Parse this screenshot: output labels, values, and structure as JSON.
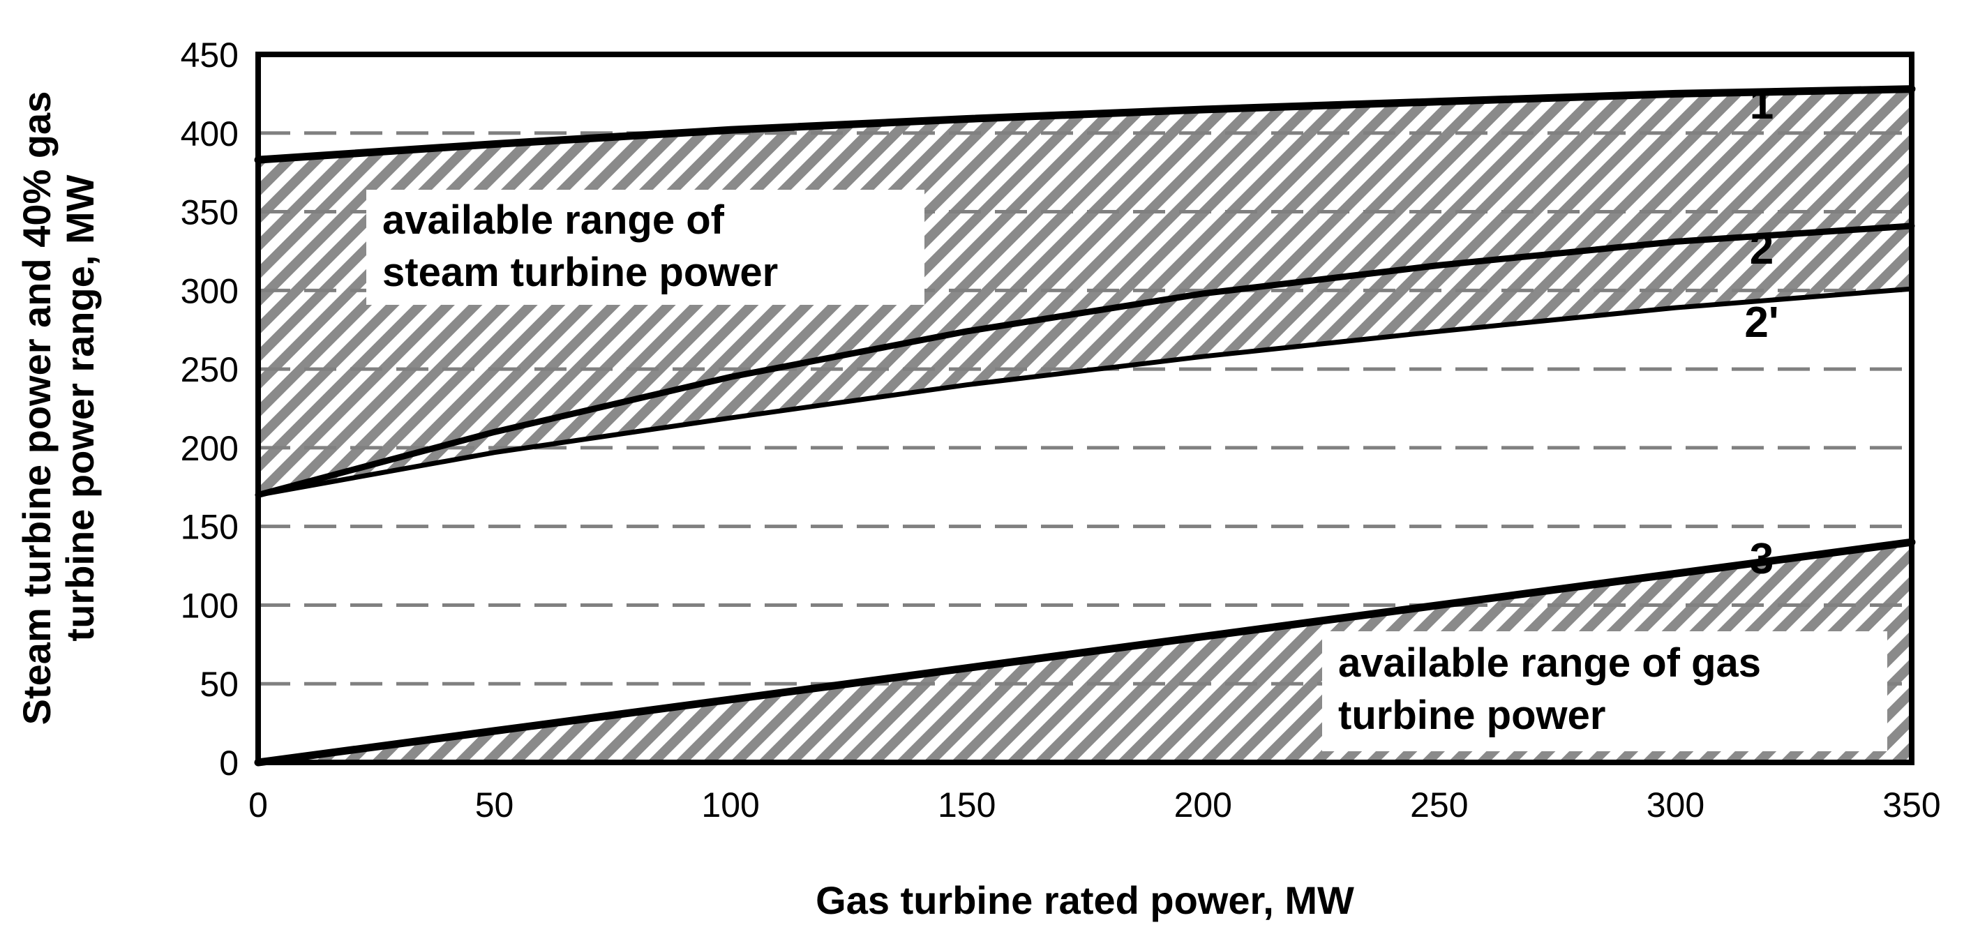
{
  "chart_data": {
    "type": "line",
    "title": "",
    "xlabel": "Gas turbine rated power, MW",
    "ylabel_lines": [
      "Steam turbine power and 40% gas",
      "turbine power range, MW"
    ],
    "xlim": [
      0,
      350
    ],
    "ylim": [
      0,
      450
    ],
    "xticks": [
      "0",
      "50",
      "100",
      "150",
      "200",
      "250",
      "300",
      "350"
    ],
    "yticks": [
      "0",
      "50",
      "100",
      "150",
      "200",
      "250",
      "300",
      "350",
      "400",
      "450"
    ],
    "grid": "horizontal dashed",
    "series": [
      {
        "name": "1",
        "x": [
          0,
          50,
          100,
          150,
          200,
          250,
          300,
          350
        ],
        "values": [
          383,
          393,
          402,
          409,
          415,
          420,
          425,
          428
        ]
      },
      {
        "name": "2",
        "x": [
          0,
          50,
          100,
          150,
          200,
          250,
          300,
          350
        ],
        "values": [
          170,
          210,
          245,
          274,
          298,
          316,
          331,
          341
        ]
      },
      {
        "name": "2'",
        "x": [
          0,
          50,
          100,
          150,
          200,
          250,
          300,
          350
        ],
        "values": [
          170,
          197,
          219,
          240,
          258,
          274,
          289,
          301
        ]
      },
      {
        "name": "3",
        "x": [
          0,
          50,
          100,
          150,
          200,
          250,
          300,
          350
        ],
        "values": [
          0,
          20,
          40,
          60,
          80,
          100,
          120,
          140
        ]
      }
    ],
    "shaded_regions": [
      {
        "label": "available range of steam turbine power",
        "between": [
          "2'",
          "1"
        ],
        "hatch": "diagonal"
      },
      {
        "label": "available range of gas turbine power",
        "between": [
          "axis",
          "3"
        ],
        "hatch": "diagonal"
      }
    ],
    "annotations": [
      {
        "lines": [
          "available range of",
          "steam turbine power"
        ]
      },
      {
        "lines": [
          "available range of gas",
          "turbine power"
        ]
      }
    ]
  },
  "colors": {
    "line": "#000000",
    "grid": "#808080",
    "hatch": "#8a8a8a",
    "background": "#ffffff"
  }
}
